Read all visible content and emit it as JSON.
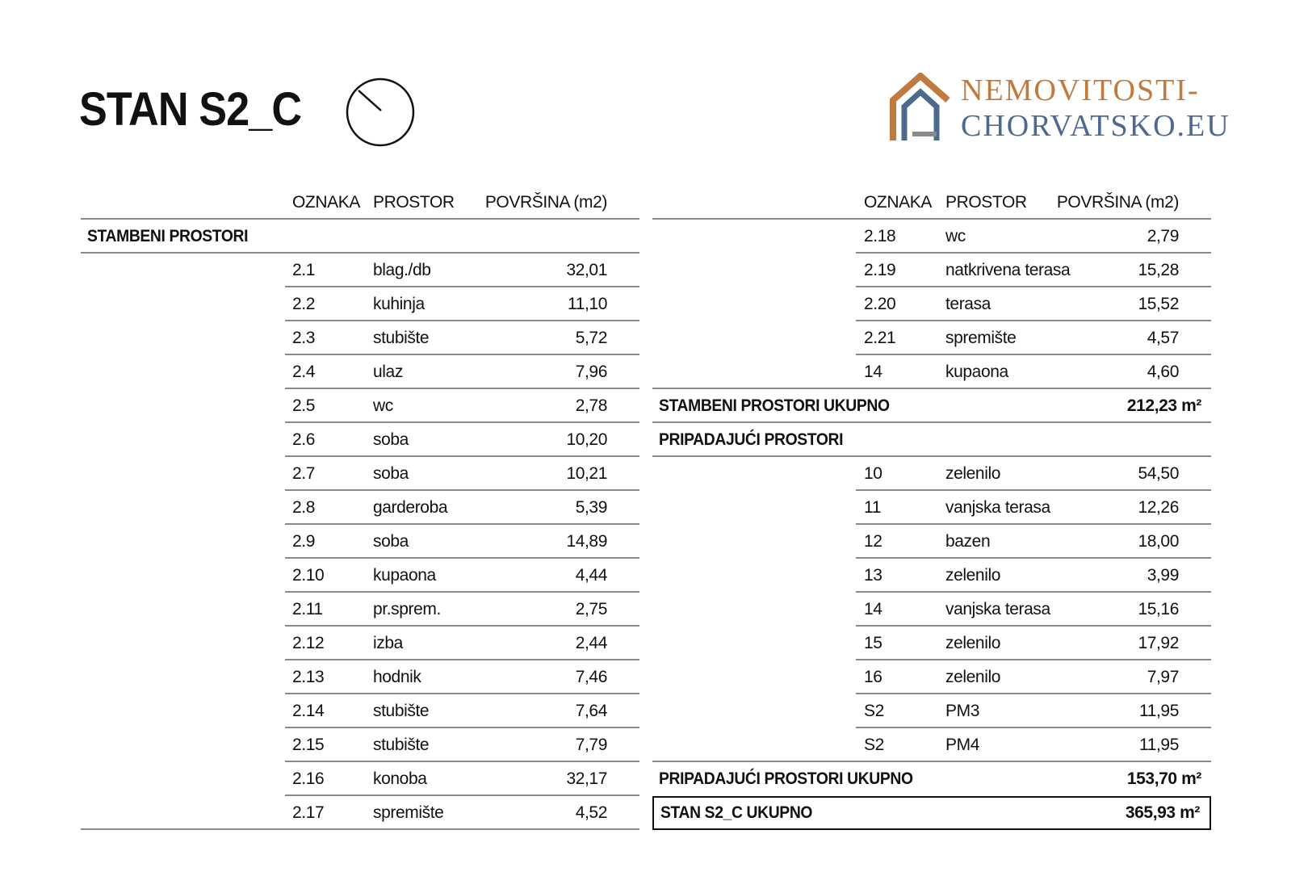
{
  "title": "STAN S2_C",
  "icons": {
    "north": "north-arrow-icon",
    "watermark": "house-logo-icon"
  },
  "headers": {
    "oznaka": "OZNAKA",
    "prostor": "PROSTOR",
    "povrsina": "POVRŠINA (m2)"
  },
  "left": {
    "section": "STAMBENI PROSTORI",
    "rows": [
      [
        "2.1",
        "blag./db",
        "32,01"
      ],
      [
        "2.2",
        "kuhinja",
        "11,10"
      ],
      [
        "2.3",
        "stubište",
        "5,72"
      ],
      [
        "2.4",
        "ulaz",
        "7,96"
      ],
      [
        "2.5",
        "wc",
        "2,78"
      ],
      [
        "2.6",
        "soba",
        "10,20"
      ],
      [
        "2.7",
        "soba",
        "10,21"
      ],
      [
        "2.8",
        "garderoba",
        "5,39"
      ],
      [
        "2.9",
        "soba",
        "14,89"
      ],
      [
        "2.10",
        "kupaona",
        "4,44"
      ],
      [
        "2.11",
        "pr.sprem.",
        "2,75"
      ],
      [
        "2.12",
        "izba",
        "2,44"
      ],
      [
        "2.13",
        "hodnik",
        "7,46"
      ],
      [
        "2.14",
        "stubište",
        "7,64"
      ],
      [
        "2.15",
        "stubište",
        "7,79"
      ],
      [
        "2.16",
        "konoba",
        "32,17"
      ],
      [
        "2.17",
        "spremište",
        "4,52"
      ]
    ]
  },
  "right": {
    "rows_a": [
      [
        "2.18",
        "wc",
        "2,79"
      ],
      [
        "2.19",
        "natkrivena terasa",
        "15,28"
      ],
      [
        "2.20",
        "terasa",
        "15,52"
      ],
      [
        "2.21",
        "spremište",
        "4,57"
      ],
      [
        "14",
        "kupaona",
        "4,60"
      ]
    ],
    "stambeni_total": {
      "label": "STAMBENI PROSTORI UKUPNO",
      "value": "212,23 m²"
    },
    "section": "PRIPADAJUĆI PROSTORI",
    "rows_b": [
      [
        "10",
        "zelenilo",
        "54,50"
      ],
      [
        "11",
        "vanjska terasa",
        "12,26"
      ],
      [
        "12",
        "bazen",
        "18,00"
      ],
      [
        "13",
        "zelenilo",
        "3,99"
      ],
      [
        "14",
        "vanjska terasa",
        "15,16"
      ],
      [
        "15",
        "zelenilo",
        "17,92"
      ],
      [
        "16",
        "zelenilo",
        "7,97"
      ],
      [
        "S2",
        "PM3",
        "11,95"
      ],
      [
        "S2",
        "PM4",
        "11,95"
      ]
    ],
    "pripadajuci_total": {
      "label": "PRIPADAJUĆI PROSTORI UKUPNO",
      "value": "153,70 m²"
    },
    "stan_total": {
      "label": "STAN S2_C UKUPNO",
      "value": "365,93 m²"
    }
  },
  "watermark": {
    "line1": "NEMOVITOSTI-",
    "line2": "CHORVATSKO.EU",
    "color1": "#c07a3e",
    "color2": "#4c6a90"
  }
}
